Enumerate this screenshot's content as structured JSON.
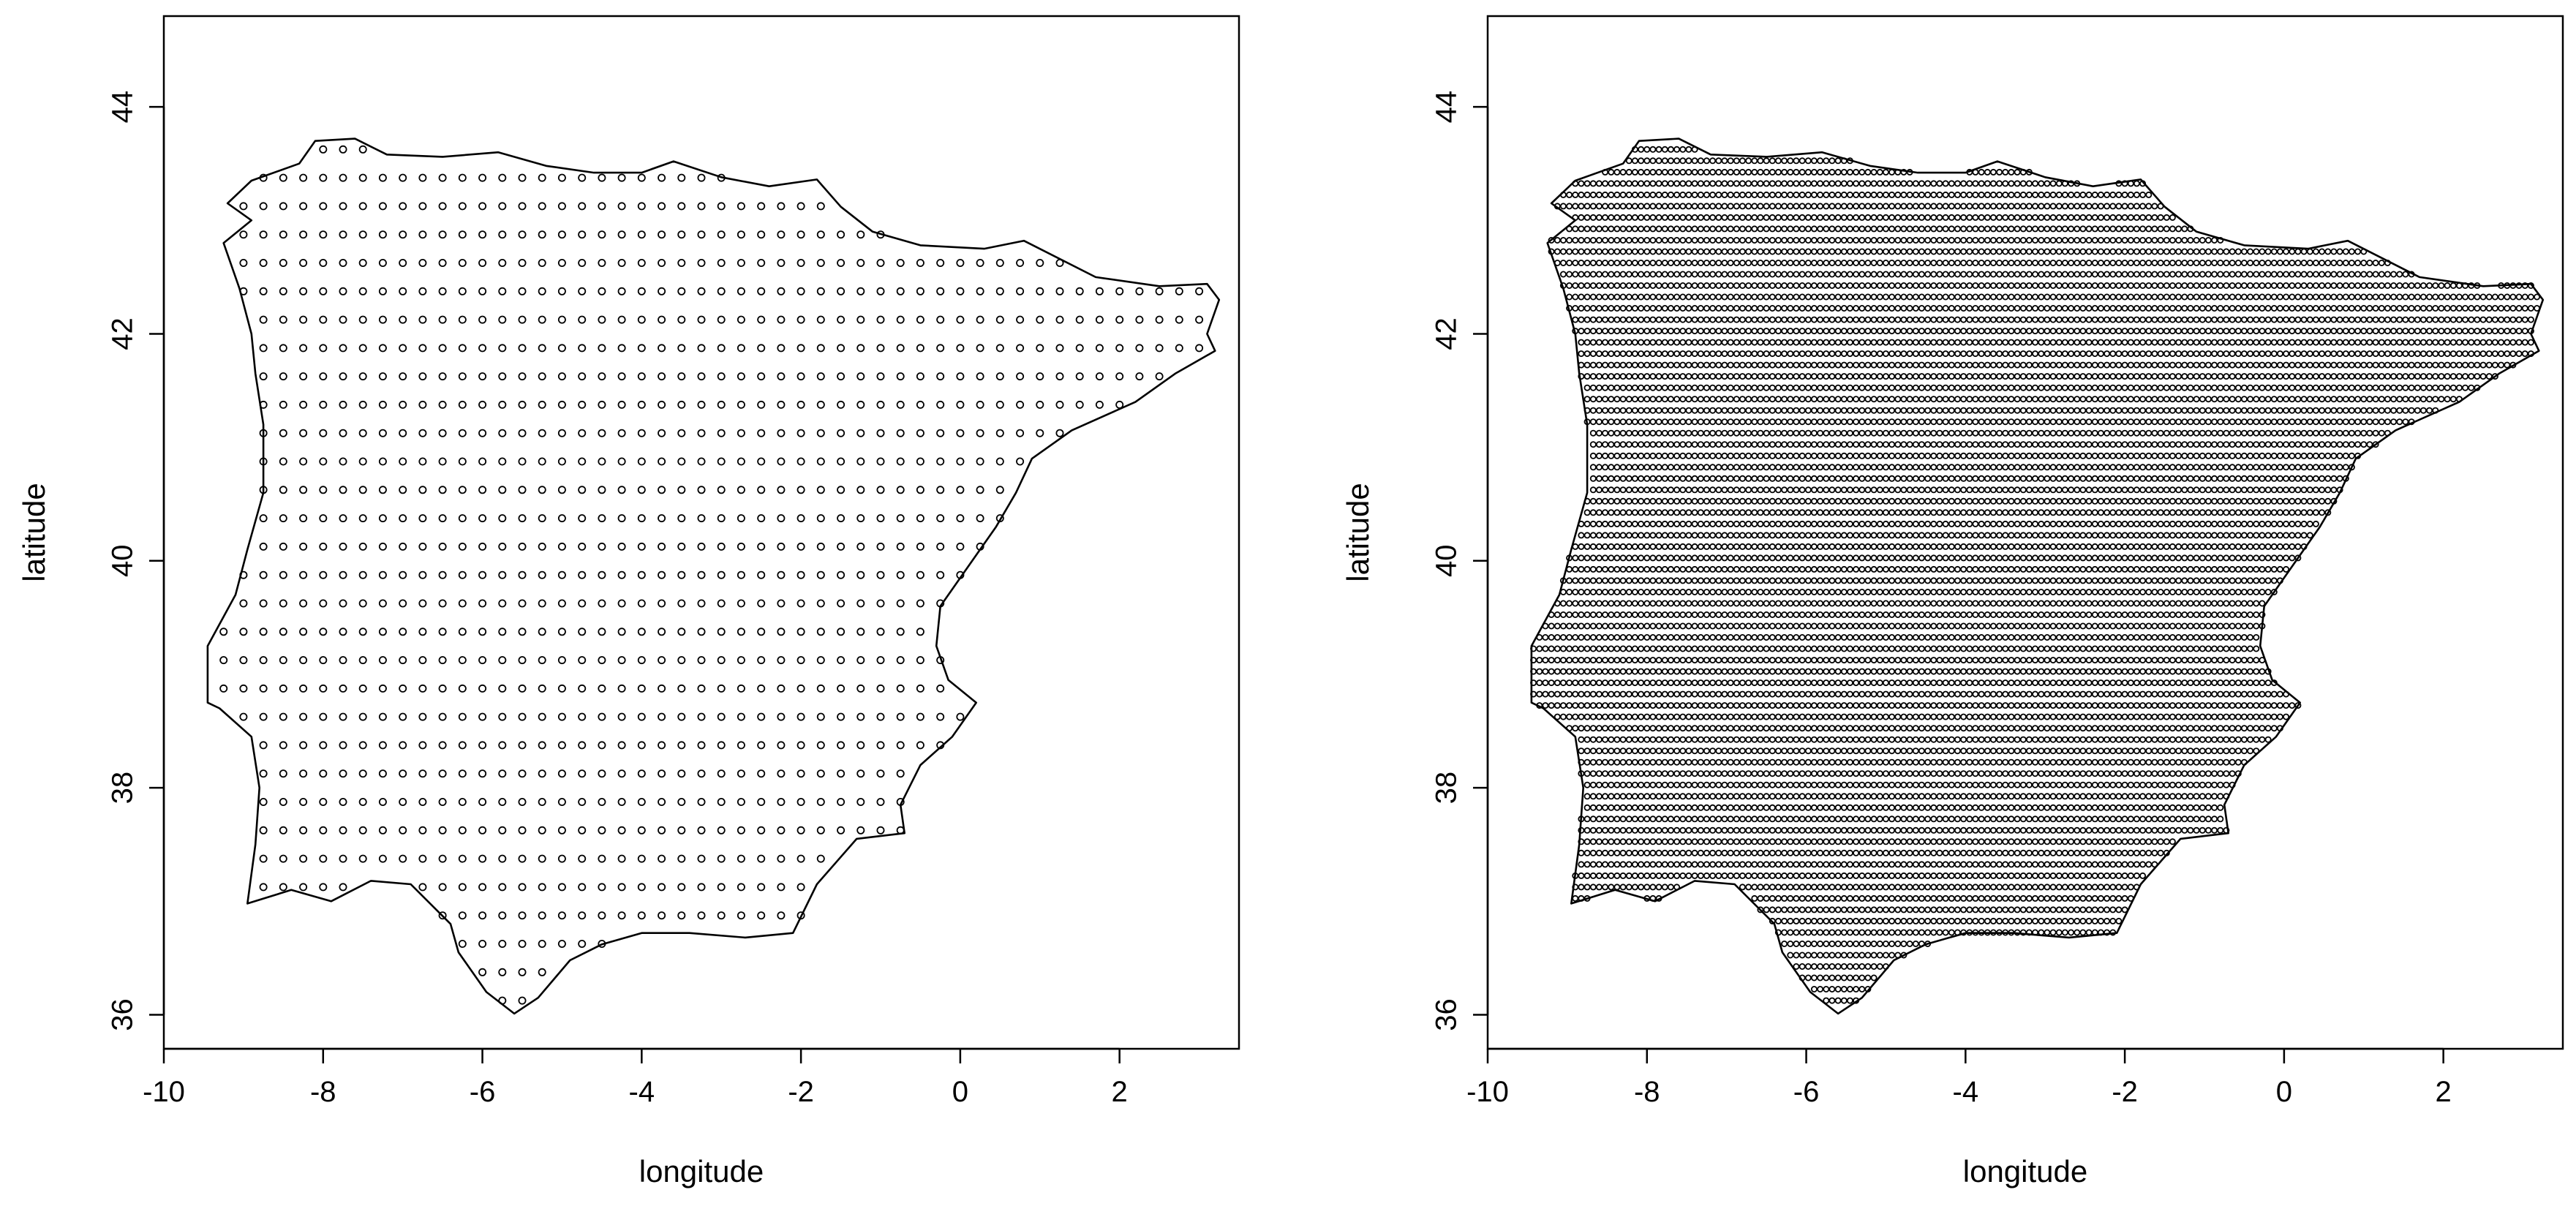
{
  "chart_data": [
    {
      "type": "scatter",
      "title": "",
      "xlabel": "longitude",
      "ylabel": "latitude",
      "xlim": [
        -10,
        3.5
      ],
      "ylim": [
        35.7,
        44.8
      ],
      "xticks": [
        -10,
        -8,
        -6,
        -4,
        -2,
        0,
        2
      ],
      "yticks": [
        36,
        38,
        40,
        42,
        44
      ],
      "grid": false,
      "legend": "none",
      "marker": "open-circle",
      "grid_spacing_deg": {
        "x": 0.25,
        "y": 0.25
      },
      "outline_color": "#000000",
      "point_color": "#000000"
    },
    {
      "type": "scatter",
      "title": "",
      "xlabel": "longitude",
      "ylabel": "latitude",
      "xlim": [
        -10,
        3.5
      ],
      "ylim": [
        35.7,
        44.8
      ],
      "xticks": [
        -10,
        -8,
        -6,
        -4,
        -2,
        0,
        2
      ],
      "yticks": [
        36,
        38,
        40,
        42,
        44
      ],
      "grid": false,
      "legend": "none",
      "marker": "open-circle",
      "grid_spacing_deg": {
        "x": 0.075,
        "y": 0.1
      },
      "outline_color": "#000000",
      "point_color": "#000000"
    }
  ],
  "boundary": {
    "name": "Iberian Peninsula",
    "lonlat": [
      [
        -8.9,
        43.0
      ],
      [
        -9.2,
        43.15
      ],
      [
        -8.9,
        43.35
      ],
      [
        -8.3,
        43.5
      ],
      [
        -8.1,
        43.7
      ],
      [
        -7.6,
        43.72
      ],
      [
        -7.2,
        43.58
      ],
      [
        -6.5,
        43.56
      ],
      [
        -5.8,
        43.6
      ],
      [
        -5.2,
        43.48
      ],
      [
        -4.6,
        43.42
      ],
      [
        -4.0,
        43.42
      ],
      [
        -3.6,
        43.52
      ],
      [
        -3.0,
        43.38
      ],
      [
        -2.4,
        43.3
      ],
      [
        -1.8,
        43.36
      ],
      [
        -1.5,
        43.12
      ],
      [
        -1.1,
        42.9
      ],
      [
        -0.5,
        42.78
      ],
      [
        0.3,
        42.75
      ],
      [
        0.8,
        42.82
      ],
      [
        1.7,
        42.5
      ],
      [
        2.5,
        42.42
      ],
      [
        3.1,
        42.44
      ],
      [
        3.25,
        42.3
      ],
      [
        3.1,
        42.0
      ],
      [
        3.2,
        41.85
      ],
      [
        2.7,
        41.65
      ],
      [
        2.2,
        41.4
      ],
      [
        1.4,
        41.15
      ],
      [
        0.9,
        40.9
      ],
      [
        0.7,
        40.6
      ],
      [
        0.45,
        40.3
      ],
      [
        0.1,
        39.95
      ],
      [
        -0.25,
        39.6
      ],
      [
        -0.3,
        39.25
      ],
      [
        -0.15,
        38.95
      ],
      [
        0.2,
        38.75
      ],
      [
        -0.1,
        38.45
      ],
      [
        -0.5,
        38.2
      ],
      [
        -0.75,
        37.85
      ],
      [
        -0.7,
        37.6
      ],
      [
        -1.3,
        37.55
      ],
      [
        -1.8,
        37.15
      ],
      [
        -2.1,
        36.72
      ],
      [
        -2.7,
        36.68
      ],
      [
        -3.4,
        36.72
      ],
      [
        -4.0,
        36.72
      ],
      [
        -4.5,
        36.62
      ],
      [
        -4.9,
        36.48
      ],
      [
        -5.3,
        36.15
      ],
      [
        -5.6,
        36.01
      ],
      [
        -5.95,
        36.2
      ],
      [
        -6.3,
        36.55
      ],
      [
        -6.4,
        36.8
      ],
      [
        -6.9,
        37.15
      ],
      [
        -7.4,
        37.18
      ],
      [
        -7.9,
        37.0
      ],
      [
        -8.4,
        37.1
      ],
      [
        -8.95,
        36.98
      ],
      [
        -8.85,
        37.5
      ],
      [
        -8.8,
        38.0
      ],
      [
        -8.9,
        38.45
      ],
      [
        -9.3,
        38.7
      ],
      [
        -9.45,
        38.75
      ],
      [
        -9.45,
        39.25
      ],
      [
        -9.1,
        39.7
      ],
      [
        -8.95,
        40.1
      ],
      [
        -8.75,
        40.6
      ],
      [
        -8.75,
        41.2
      ],
      [
        -8.85,
        41.65
      ],
      [
        -8.9,
        42.0
      ],
      [
        -9.05,
        42.4
      ],
      [
        -9.25,
        42.8
      ],
      [
        -8.9,
        43.0
      ]
    ]
  }
}
